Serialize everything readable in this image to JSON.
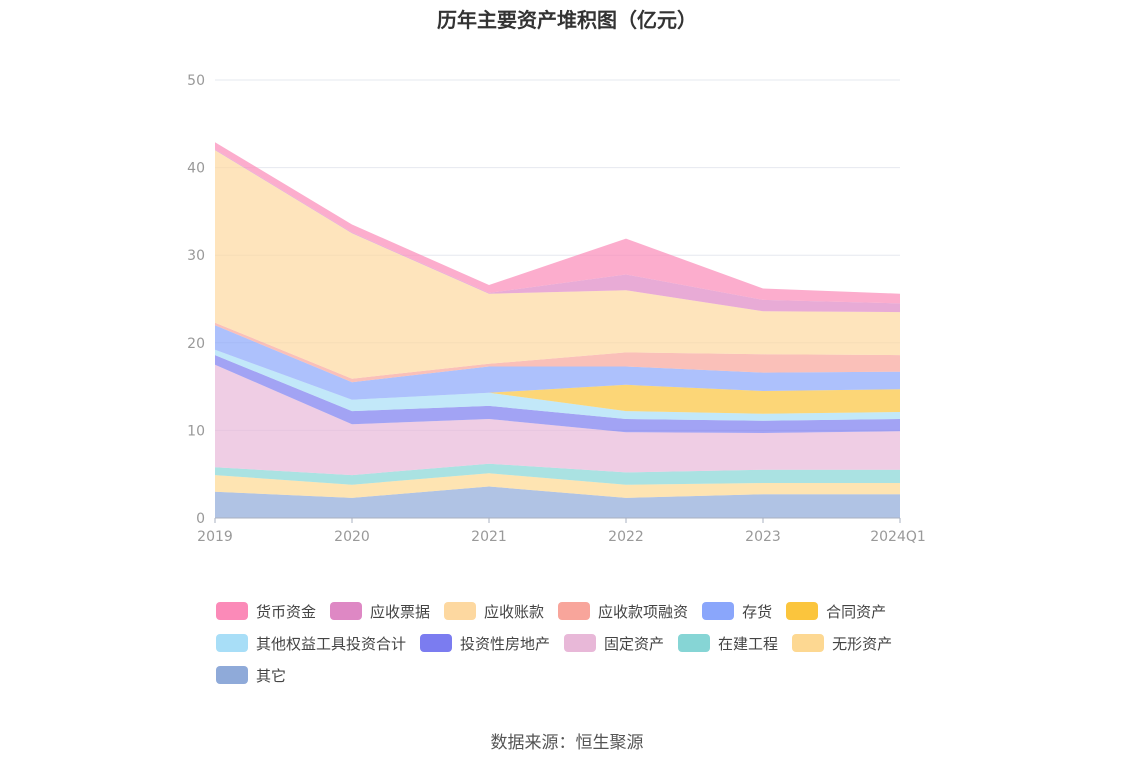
{
  "chart_data": {
    "type": "area",
    "stacked": true,
    "title": "历年主要资产堆积图（亿元）",
    "categories": [
      "2019",
      "2020",
      "2021",
      "2022",
      "2023",
      "2024Q1"
    ],
    "ylim": [
      0,
      50
    ],
    "yticks": [
      0,
      10,
      20,
      30,
      40,
      50
    ],
    "grid": true,
    "legend_position": "bottom",
    "series": [
      {
        "name": "其它",
        "color": "#8faad9",
        "values": [
          3.0,
          2.3,
          3.6,
          2.3,
          2.7,
          2.7
        ]
      },
      {
        "name": "无形资产",
        "color": "#fdd892",
        "values": [
          1.9,
          1.5,
          1.5,
          1.5,
          1.3,
          1.3
        ]
      },
      {
        "name": "在建工程",
        "color": "#86d5d5",
        "values": [
          0.9,
          1.1,
          1.1,
          1.4,
          1.5,
          1.5
        ]
      },
      {
        "name": "固定资产",
        "color": "#e8b8d8",
        "values": [
          11.7,
          5.8,
          5.1,
          4.6,
          4.2,
          4.4
        ]
      },
      {
        "name": "投资性房地产",
        "color": "#7b7cf0",
        "values": [
          1.1,
          1.5,
          1.5,
          1.5,
          1.4,
          1.4
        ]
      },
      {
        "name": "其他权益工具投资合计",
        "color": "#a8def7",
        "values": [
          0.6,
          1.3,
          1.5,
          0.9,
          0.8,
          0.8
        ]
      },
      {
        "name": "合同资产",
        "color": "#fbc53d",
        "values": [
          0,
          0,
          0,
          3.0,
          2.6,
          2.6
        ]
      },
      {
        "name": "存货",
        "color": "#8aa6fb",
        "values": [
          2.8,
          2.0,
          3.0,
          2.1,
          2.1,
          2.0
        ]
      },
      {
        "name": "应收款项融资",
        "color": "#f8a59b",
        "values": [
          0.3,
          0.4,
          0.3,
          1.6,
          2.1,
          1.9
        ]
      },
      {
        "name": "应收账款",
        "color": "#fdd8a0",
        "values": [
          19.7,
          16.6,
          8.0,
          7.1,
          4.9,
          4.9
        ]
      },
      {
        "name": "应收票据",
        "color": "#de88c4",
        "values": [
          0.1,
          0.1,
          0.1,
          1.8,
          1.3,
          1.0
        ]
      },
      {
        "name": "货币资金",
        "color": "#fb8ab8",
        "values": [
          0.8,
          0.9,
          0.9,
          4.1,
          1.3,
          1.1
        ]
      }
    ],
    "legend_order": [
      "货币资金",
      "应收票据",
      "应收账款",
      "应收款项融资",
      "存货",
      "合同资产",
      "其他权益工具投资合计",
      "投资性房地产",
      "固定资产",
      "在建工程",
      "无形资产",
      "其它"
    ]
  },
  "source": "数据来源：恒生聚源"
}
